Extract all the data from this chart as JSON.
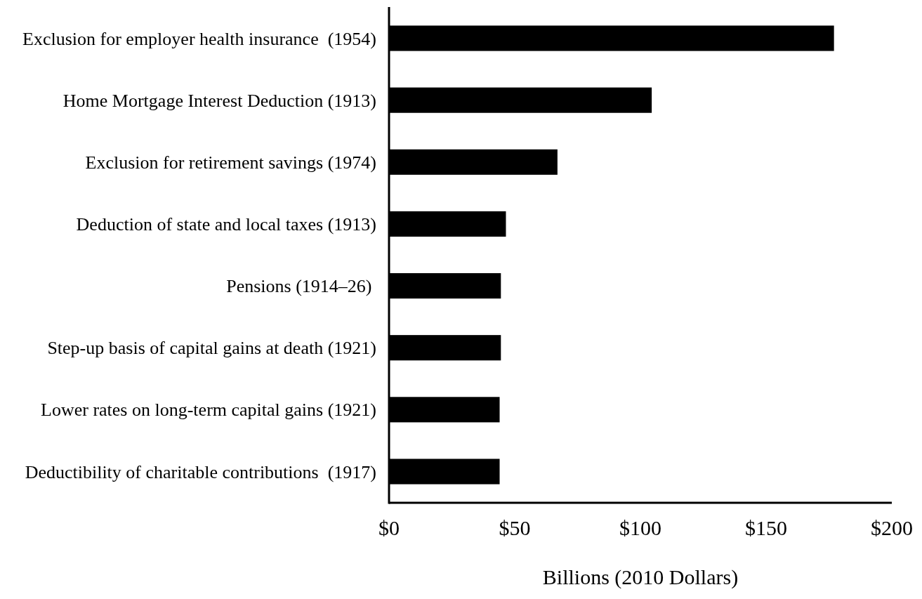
{
  "chart_data": {
    "type": "bar",
    "orientation": "horizontal",
    "xlabel": "Billions (2010 Dollars)",
    "categories": [
      "Exclusion for employer health insurance  (1954)",
      "Home Mortgage Interest Deduction (1913)",
      "Exclusion for retirement savings (1974)",
      "Deduction of state and local taxes (1913)",
      "Pensions (1914–26) ",
      "Step-up basis of capital gains at death (1921)",
      "Lower rates on long-term capital gains (1921)",
      "Deductibility of charitable contributions  (1917)"
    ],
    "values": [
      177,
      104.5,
      67,
      46.5,
      44.5,
      44.5,
      44,
      44
    ],
    "color": "#000000",
    "xlim": [
      0,
      200
    ],
    "xticks": [
      {
        "value": 0,
        "label": "$0"
      },
      {
        "value": 50,
        "label": "$50"
      },
      {
        "value": 100,
        "label": "$100"
      },
      {
        "value": 150,
        "label": "$150"
      },
      {
        "value": 200,
        "label": "$200"
      }
    ],
    "grid": false
  }
}
